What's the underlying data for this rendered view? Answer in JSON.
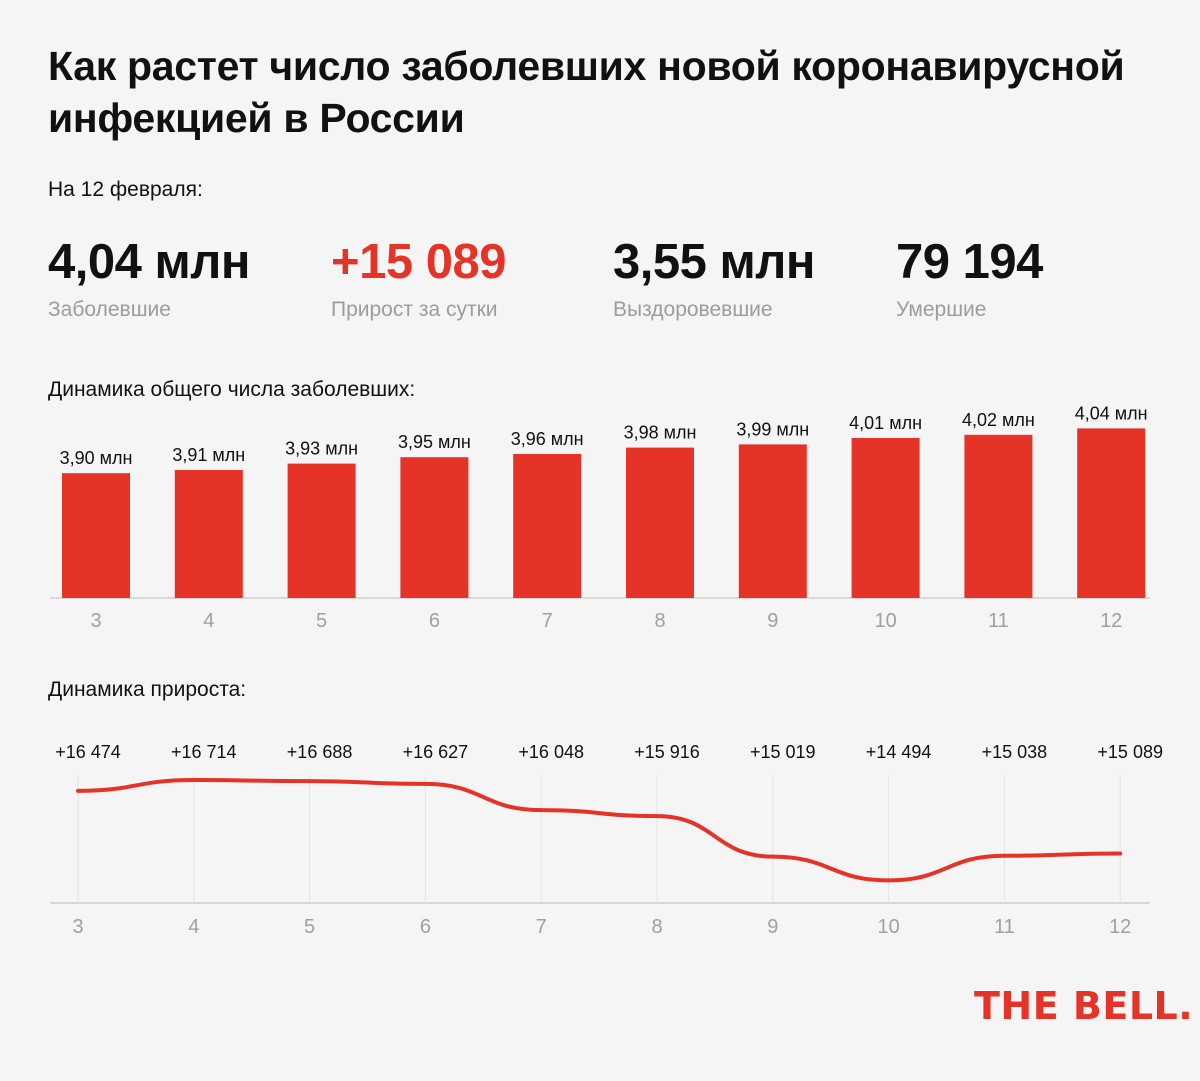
{
  "title": "Как растет число заболевших новой коронавирусной инфекцией в России",
  "as_of": "На 12 февраля:",
  "stats": [
    {
      "value": "4,04 млн",
      "label": "Заболевшие"
    },
    {
      "value": "+15 089",
      "label": "Прирост за сутки"
    },
    {
      "value": "3,55 млн",
      "label": "Выздоровевшие"
    },
    {
      "value": "79 194",
      "label": "Умершие"
    }
  ],
  "accent_color": "#e53327",
  "logo": "THE BELL.",
  "chart_data": [
    {
      "type": "bar",
      "title": "Динамика общего числа заболевших:",
      "categories": [
        "3",
        "4",
        "5",
        "6",
        "7",
        "8",
        "9",
        "10",
        "11",
        "12"
      ],
      "values": [
        3.9,
        3.91,
        3.93,
        3.95,
        3.96,
        3.98,
        3.99,
        4.01,
        4.02,
        4.04
      ],
      "data_labels": [
        "3,90 млн",
        "3,91 млн",
        "3,93 млн",
        "3,95 млн",
        "3,96 млн",
        "3,98 млн",
        "3,99 млн",
        "4,01 млн",
        "4,02 млн",
        "4,04 млн"
      ],
      "color": "#e53327",
      "grid": false
    },
    {
      "type": "line",
      "title": "Динамика прироста:",
      "categories": [
        "3",
        "4",
        "5",
        "6",
        "7",
        "8",
        "9",
        "10",
        "11",
        "12"
      ],
      "values": [
        16474,
        16714,
        16688,
        16627,
        16048,
        15916,
        15019,
        14494,
        15038,
        15089
      ],
      "data_labels": [
        "+16 474",
        "+16 714",
        "+16 688",
        "+16 627",
        "+16 048",
        "+15 916",
        "+15 019",
        "+14 494",
        "+15 038",
        "+15 089"
      ],
      "color": "#e53327",
      "grid": true
    }
  ]
}
